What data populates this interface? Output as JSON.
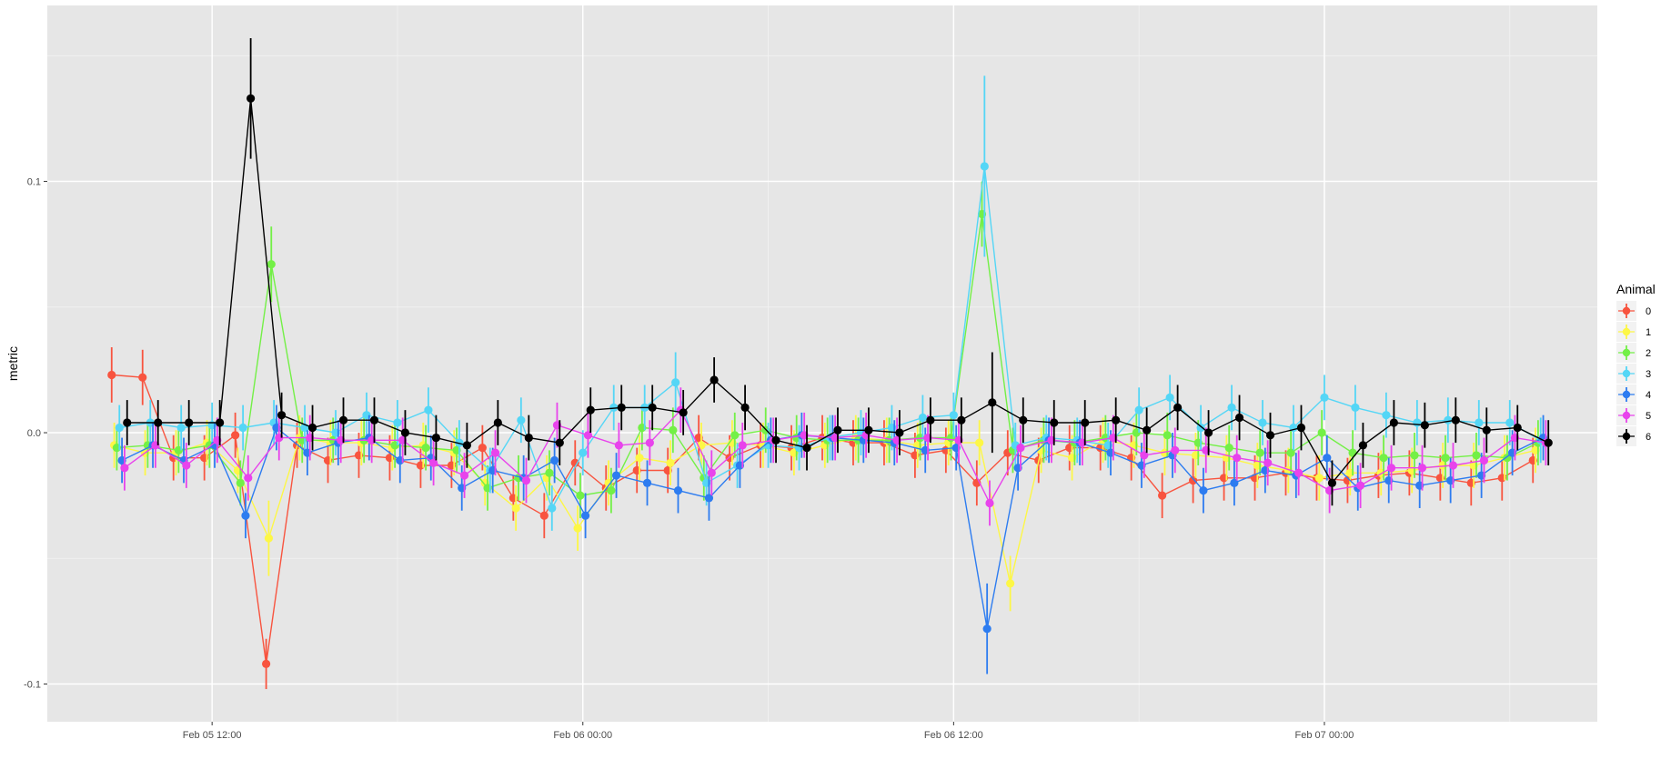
{
  "chart_data": {
    "type": "line",
    "title": "",
    "xlabel": "",
    "ylabel": "metric",
    "x_scale": "datetime",
    "x_ticks": [
      "Feb 05 12:00",
      "Feb 06 00:00",
      "Feb 06 12:00",
      "Feb 07 00:00"
    ],
    "x_tick_values": [
      "2020-02-05T12:00",
      "2020-02-06T00:00",
      "2020-02-06T12:00",
      "2020-02-07T00:00"
    ],
    "xlim": [
      "2020-02-05T06:40",
      "2020-02-07T08:50"
    ],
    "y_ticks": [
      -0.1,
      0.0,
      0.1
    ],
    "y_tick_labels": [
      "-0.1",
      "0.0",
      "0.1"
    ],
    "ylim": [
      -0.115,
      0.17
    ],
    "grid": true,
    "background": "#e6e6e6",
    "legend": {
      "title": "Animal",
      "position": "right"
    },
    "x": [
      "2020-02-05T09:00",
      "2020-02-05T10:00",
      "2020-02-05T11:00",
      "2020-02-05T12:00",
      "2020-02-05T13:00",
      "2020-02-05T14:00",
      "2020-02-05T15:00",
      "2020-02-05T16:00",
      "2020-02-05T17:00",
      "2020-02-05T18:00",
      "2020-02-05T19:00",
      "2020-02-05T20:00",
      "2020-02-05T21:00",
      "2020-02-05T22:00",
      "2020-02-05T23:00",
      "2020-02-06T00:00",
      "2020-02-06T01:00",
      "2020-02-06T02:00",
      "2020-02-06T03:00",
      "2020-02-06T04:00",
      "2020-02-06T05:00",
      "2020-02-06T06:00",
      "2020-02-06T07:00",
      "2020-02-06T08:00",
      "2020-02-06T09:00",
      "2020-02-06T10:00",
      "2020-02-06T11:00",
      "2020-02-06T12:00",
      "2020-02-06T13:00",
      "2020-02-06T14:00",
      "2020-02-06T15:00",
      "2020-02-06T16:00",
      "2020-02-06T17:00",
      "2020-02-06T18:00",
      "2020-02-06T19:00",
      "2020-02-06T20:00",
      "2020-02-06T21:00",
      "2020-02-06T22:00",
      "2020-02-06T23:00",
      "2020-02-07T00:00",
      "2020-02-07T01:00",
      "2020-02-07T02:00",
      "2020-02-07T03:00",
      "2020-02-07T04:00",
      "2020-02-07T05:00",
      "2020-02-07T06:00",
      "2020-02-07T07:00"
    ],
    "series": [
      {
        "name": "0",
        "color": "#f8543f",
        "values": [
          0.023,
          0.022,
          -0.01,
          -0.01,
          -0.001,
          -0.092,
          -0.005,
          -0.011,
          -0.009,
          -0.01,
          -0.013,
          -0.013,
          -0.006,
          -0.026,
          -0.033,
          -0.012,
          -0.022,
          -0.015,
          -0.015,
          -0.002,
          -0.01,
          -0.005,
          -0.006,
          -0.002,
          -0.004,
          -0.004,
          -0.009,
          -0.007,
          -0.02,
          -0.008,
          -0.011,
          -0.006,
          -0.006,
          -0.01,
          -0.025,
          -0.019,
          -0.018,
          -0.018,
          -0.016,
          -0.018,
          -0.019,
          -0.017,
          -0.016,
          -0.018,
          -0.02,
          -0.018,
          -0.011
        ],
        "errors": [
          0.011,
          0.011,
          0.009,
          0.009,
          0.009,
          0.01,
          0.009,
          0.009,
          0.009,
          0.009,
          0.009,
          0.009,
          0.009,
          0.009,
          0.009,
          0.009,
          0.009,
          0.009,
          0.009,
          0.009,
          0.009,
          0.009,
          0.009,
          0.009,
          0.009,
          0.009,
          0.009,
          0.009,
          0.009,
          0.009,
          0.009,
          0.009,
          0.009,
          0.009,
          0.009,
          0.009,
          0.009,
          0.009,
          0.009,
          0.009,
          0.009,
          0.009,
          0.009,
          0.009,
          0.009,
          0.009,
          0.009
        ]
      },
      {
        "name": "1",
        "color": "#fdf746",
        "values": [
          -0.005,
          -0.008,
          -0.008,
          -0.004,
          -0.015,
          -0.042,
          -0.002,
          -0.004,
          -0.004,
          -0.006,
          -0.005,
          -0.008,
          -0.02,
          -0.03,
          -0.018,
          -0.038,
          -0.02,
          -0.01,
          -0.012,
          -0.005,
          -0.004,
          -0.005,
          -0.008,
          -0.005,
          -0.002,
          -0.003,
          -0.005,
          -0.004,
          -0.004,
          -0.06,
          -0.007,
          -0.01,
          -0.003,
          -0.005,
          -0.008,
          -0.009,
          -0.01,
          -0.013,
          -0.015,
          -0.018,
          -0.016,
          -0.016,
          -0.015,
          -0.013,
          -0.013,
          -0.01,
          -0.007
        ],
        "errors": [
          0.009,
          0.009,
          0.009,
          0.009,
          0.009,
          0.015,
          0.009,
          0.009,
          0.009,
          0.009,
          0.009,
          0.009,
          0.009,
          0.009,
          0.009,
          0.009,
          0.009,
          0.009,
          0.009,
          0.009,
          0.009,
          0.009,
          0.009,
          0.009,
          0.009,
          0.009,
          0.009,
          0.009,
          0.009,
          0.011,
          0.009,
          0.009,
          0.009,
          0.009,
          0.009,
          0.009,
          0.009,
          0.009,
          0.009,
          0.009,
          0.009,
          0.009,
          0.009,
          0.009,
          0.009,
          0.009,
          0.009
        ]
      },
      {
        "name": "2",
        "color": "#73f046",
        "values": [
          -0.006,
          -0.005,
          -0.007,
          -0.005,
          -0.02,
          0.067,
          -0.003,
          -0.003,
          -0.003,
          -0.005,
          -0.006,
          -0.007,
          -0.022,
          -0.018,
          -0.016,
          -0.025,
          -0.023,
          0.002,
          0.001,
          -0.018,
          -0.001,
          0.001,
          -0.002,
          -0.003,
          -0.003,
          -0.003,
          -0.002,
          -0.002,
          0.087,
          -0.007,
          -0.003,
          -0.004,
          -0.002,
          0.0,
          -0.001,
          -0.004,
          -0.006,
          -0.008,
          -0.008,
          0.0,
          -0.008,
          -0.01,
          -0.009,
          -0.01,
          -0.009,
          -0.01,
          -0.004
        ],
        "errors": [
          0.009,
          0.009,
          0.009,
          0.009,
          0.009,
          0.015,
          0.009,
          0.009,
          0.009,
          0.009,
          0.009,
          0.009,
          0.009,
          0.009,
          0.009,
          0.009,
          0.009,
          0.009,
          0.009,
          0.009,
          0.009,
          0.009,
          0.009,
          0.009,
          0.009,
          0.009,
          0.009,
          0.009,
          0.013,
          0.009,
          0.009,
          0.009,
          0.009,
          0.009,
          0.009,
          0.009,
          0.009,
          0.009,
          0.009,
          0.009,
          0.009,
          0.009,
          0.009,
          0.009,
          0.009,
          0.009,
          0.009
        ]
      },
      {
        "name": "3",
        "color": "#54d6f6",
        "values": [
          0.002,
          0.004,
          0.002,
          0.003,
          0.002,
          0.004,
          0.002,
          0.0,
          0.007,
          0.004,
          0.009,
          -0.004,
          -0.015,
          0.005,
          -0.03,
          -0.008,
          0.01,
          0.01,
          0.02,
          -0.02,
          -0.013,
          -0.005,
          -0.006,
          -0.002,
          0.0,
          0.002,
          0.006,
          0.007,
          0.106,
          -0.005,
          -0.002,
          -0.003,
          -0.005,
          0.009,
          0.014,
          0.002,
          0.01,
          0.004,
          0.002,
          0.014,
          0.01,
          0.007,
          0.004,
          0.005,
          0.004,
          0.004,
          -0.003
        ],
        "errors": [
          0.009,
          0.009,
          0.009,
          0.009,
          0.009,
          0.009,
          0.009,
          0.009,
          0.009,
          0.009,
          0.009,
          0.009,
          0.009,
          0.009,
          0.009,
          0.009,
          0.009,
          0.009,
          0.012,
          0.009,
          0.009,
          0.009,
          0.009,
          0.009,
          0.009,
          0.009,
          0.009,
          0.009,
          0.036,
          0.009,
          0.009,
          0.009,
          0.009,
          0.009,
          0.009,
          0.009,
          0.009,
          0.009,
          0.009,
          0.009,
          0.009,
          0.009,
          0.009,
          0.009,
          0.009,
          0.009,
          0.009
        ]
      },
      {
        "name": "4",
        "color": "#2d7cf0",
        "values": [
          -0.011,
          -0.005,
          -0.011,
          -0.005,
          -0.033,
          0.002,
          -0.008,
          -0.004,
          -0.002,
          -0.011,
          -0.01,
          -0.022,
          -0.015,
          -0.018,
          -0.011,
          -0.033,
          -0.017,
          -0.02,
          -0.023,
          -0.026,
          -0.013,
          -0.003,
          -0.001,
          -0.002,
          -0.003,
          -0.004,
          -0.007,
          -0.006,
          -0.078,
          -0.014,
          -0.003,
          -0.004,
          -0.008,
          -0.013,
          -0.009,
          -0.023,
          -0.02,
          -0.015,
          -0.017,
          -0.01,
          -0.022,
          -0.019,
          -0.021,
          -0.019,
          -0.017,
          -0.008,
          -0.002
        ],
        "errors": [
          0.009,
          0.009,
          0.009,
          0.009,
          0.009,
          0.009,
          0.009,
          0.009,
          0.009,
          0.009,
          0.009,
          0.009,
          0.009,
          0.009,
          0.009,
          0.009,
          0.009,
          0.009,
          0.009,
          0.009,
          0.009,
          0.009,
          0.009,
          0.009,
          0.009,
          0.009,
          0.009,
          0.009,
          0.018,
          0.009,
          0.009,
          0.009,
          0.009,
          0.009,
          0.009,
          0.009,
          0.009,
          0.009,
          0.009,
          0.009,
          0.009,
          0.009,
          0.009,
          0.009,
          0.009,
          0.009,
          0.009
        ]
      },
      {
        "name": "5",
        "color": "#e843ec",
        "values": [
          -0.014,
          -0.005,
          -0.013,
          -0.003,
          -0.018,
          -0.002,
          -0.002,
          -0.003,
          -0.003,
          -0.003,
          -0.012,
          -0.017,
          -0.008,
          -0.019,
          0.003,
          -0.001,
          -0.005,
          -0.004,
          0.009,
          -0.016,
          -0.005,
          -0.003,
          -0.001,
          -0.002,
          -0.001,
          -0.003,
          -0.002,
          -0.003,
          -0.028,
          -0.006,
          -0.003,
          -0.004,
          -0.002,
          -0.009,
          -0.007,
          -0.007,
          -0.01,
          -0.012,
          -0.016,
          -0.023,
          -0.021,
          -0.014,
          -0.014,
          -0.013,
          -0.011,
          -0.002,
          -0.004
        ],
        "errors": [
          0.009,
          0.009,
          0.009,
          0.009,
          0.009,
          0.009,
          0.009,
          0.009,
          0.009,
          0.009,
          0.009,
          0.009,
          0.009,
          0.009,
          0.009,
          0.009,
          0.009,
          0.009,
          0.009,
          0.009,
          0.009,
          0.009,
          0.009,
          0.009,
          0.009,
          0.009,
          0.009,
          0.009,
          0.009,
          0.009,
          0.009,
          0.009,
          0.009,
          0.009,
          0.009,
          0.009,
          0.009,
          0.009,
          0.009,
          0.009,
          0.009,
          0.009,
          0.009,
          0.009,
          0.009,
          0.009,
          0.009
        ]
      },
      {
        "name": "6",
        "color": "#000000",
        "values": [
          0.004,
          0.004,
          0.004,
          0.004,
          0.133,
          0.007,
          0.002,
          0.005,
          0.005,
          0.0,
          -0.002,
          -0.005,
          0.004,
          -0.002,
          -0.004,
          0.009,
          0.01,
          0.01,
          0.008,
          0.021,
          0.01,
          -0.003,
          -0.006,
          0.001,
          0.001,
          0.0,
          0.005,
          0.005,
          0.012,
          0.005,
          0.004,
          0.004,
          0.005,
          0.001,
          0.01,
          0.0,
          0.006,
          -0.001,
          0.002,
          -0.02,
          -0.005,
          0.004,
          0.003,
          0.005,
          0.001,
          0.002,
          -0.004
        ],
        "errors": [
          0.009,
          0.009,
          0.009,
          0.009,
          0.024,
          0.009,
          0.009,
          0.009,
          0.009,
          0.009,
          0.009,
          0.009,
          0.009,
          0.009,
          0.009,
          0.009,
          0.009,
          0.009,
          0.009,
          0.009,
          0.009,
          0.009,
          0.009,
          0.009,
          0.009,
          0.009,
          0.009,
          0.009,
          0.02,
          0.009,
          0.009,
          0.009,
          0.009,
          0.009,
          0.009,
          0.009,
          0.009,
          0.009,
          0.009,
          0.009,
          0.009,
          0.009,
          0.009,
          0.009,
          0.009,
          0.009,
          0.009
        ]
      }
    ]
  }
}
